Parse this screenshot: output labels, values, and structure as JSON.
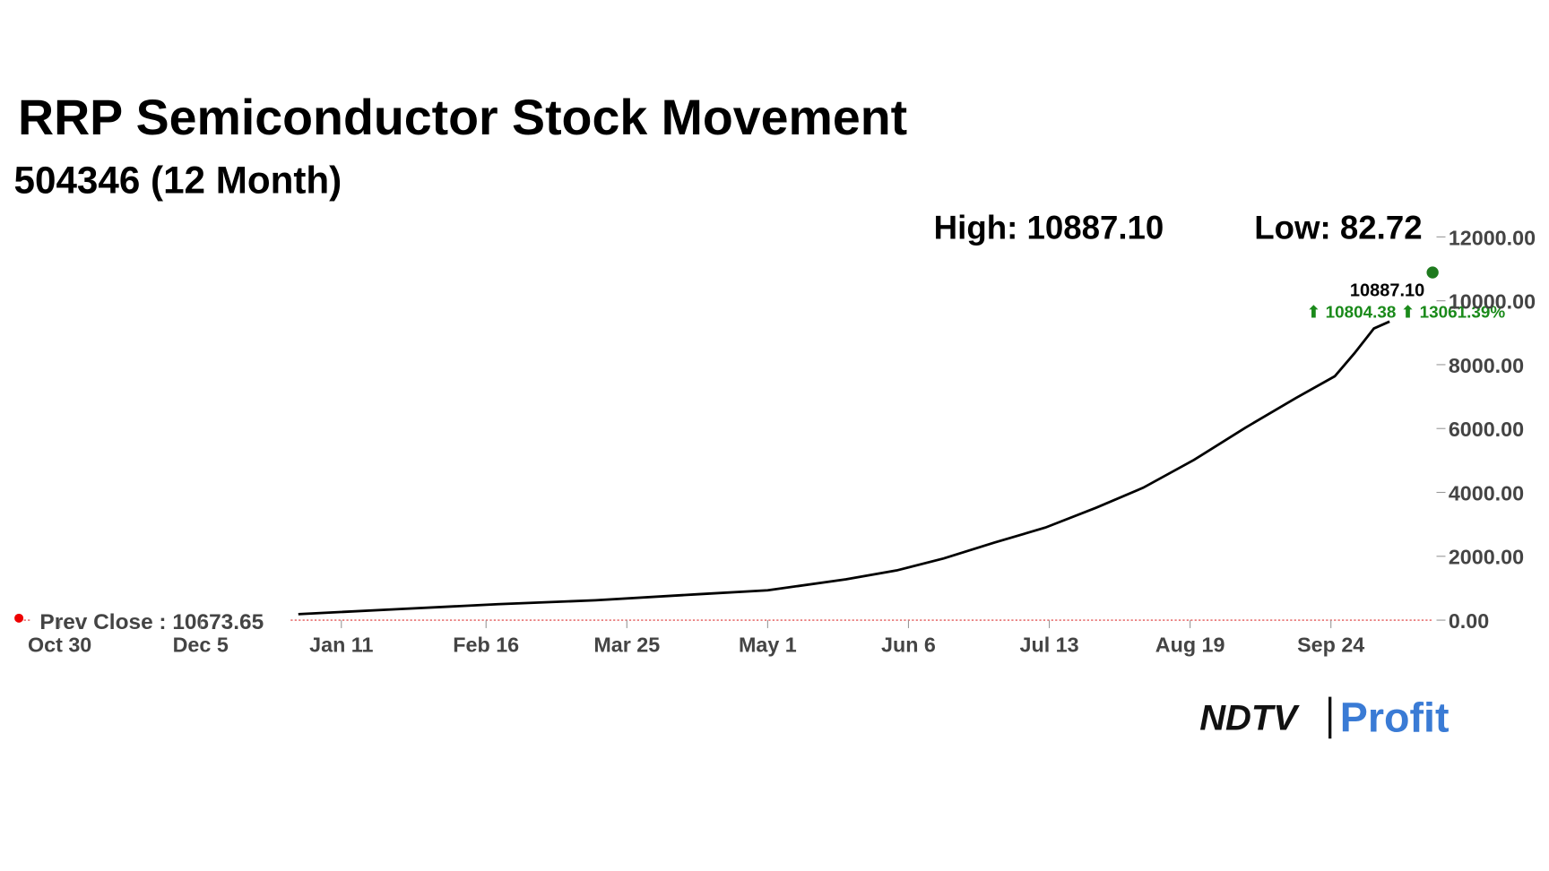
{
  "chart_data": {
    "type": "line",
    "title": "RRP Semiconductor Stock Movement",
    "subtitle": "504346 (12 Month)",
    "high_text": "High: 10887.10",
    "low_text": "Low: 82.72",
    "prev_close_text": "Prev Close : 10673.65",
    "change_text": "⬆ 10804.38 ⬆ 13061.39%",
    "logo": {
      "left": "NDTV",
      "right": "Profit"
    },
    "x": [
      61,
      86,
      112,
      137,
      163,
      181,
      201,
      214,
      226,
      239,
      252,
      265,
      277,
      290,
      303,
      316,
      326,
      331,
      336,
      340
    ],
    "series": [
      {
        "name": "504346",
        "color": "#000000",
        "values": [
          187,
          343,
          499,
          623,
          810,
          935,
          1278,
          1558,
          1932,
          2431,
          2899,
          3522,
          4146,
          5018,
          6016,
          6951,
          7637,
          8354,
          9133,
          9351
        ]
      }
    ],
    "high_marker": {
      "x": 351,
      "value": 10887.1,
      "value_label": "10887.10",
      "color": "#1e7a1e"
    },
    "xlim": [
      0,
      352
    ],
    "xticks": [
      {
        "value": 0,
        "label": "Oct 30"
      },
      {
        "value": 36,
        "label": "Dec 5"
      },
      {
        "value": 72,
        "label": "Jan 11"
      },
      {
        "value": 109,
        "label": "Feb 16"
      },
      {
        "value": 145,
        "label": "Mar 25"
      },
      {
        "value": 181,
        "label": "May 1"
      },
      {
        "value": 217,
        "label": "Jun 6"
      },
      {
        "value": 253,
        "label": "Jul 13"
      },
      {
        "value": 289,
        "label": "Aug 19"
      },
      {
        "value": 325,
        "label": "Sep 24"
      }
    ],
    "ylim": [
      0,
      12000
    ],
    "yticks": [
      {
        "value": 0,
        "label": "0.00"
      },
      {
        "value": 2000,
        "label": "2000.00"
      },
      {
        "value": 4000,
        "label": "4000.00"
      },
      {
        "value": 6000,
        "label": "6000.00"
      },
      {
        "value": 8000,
        "label": "8000.00"
      },
      {
        "value": 10000,
        "label": "10000.00"
      },
      {
        "value": 12000,
        "label": "12000.00"
      }
    ],
    "grid": false
  }
}
